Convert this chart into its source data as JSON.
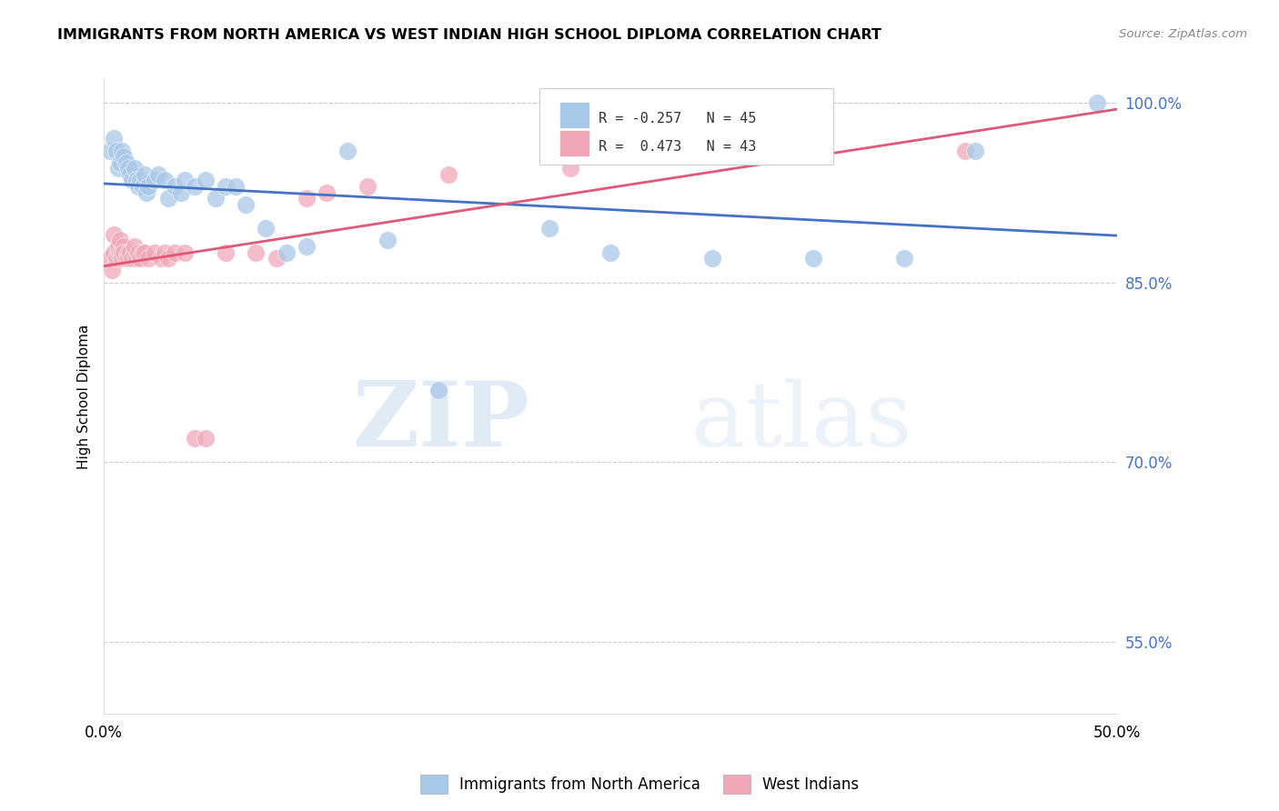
{
  "title": "IMMIGRANTS FROM NORTH AMERICA VS WEST INDIAN HIGH SCHOOL DIPLOMA CORRELATION CHART",
  "source": "Source: ZipAtlas.com",
  "ylabel": "High School Diploma",
  "xlim": [
    0.0,
    0.5
  ],
  "ylim": [
    0.49,
    1.02
  ],
  "x_ticks": [
    0.0,
    0.1,
    0.2,
    0.3,
    0.4,
    0.5
  ],
  "x_tick_labels": [
    "0.0%",
    "",
    "",
    "",
    "",
    "50.0%"
  ],
  "y_ticks_right": [
    1.0,
    0.85,
    0.7,
    0.55
  ],
  "y_tick_labels_right": [
    "100.0%",
    "85.0%",
    "70.0%",
    "55.0%"
  ],
  "legend_labels_line1": "R = -0.257   N = 45",
  "legend_labels_line2": "R =  0.473   N = 43",
  "legend_label_bottom": [
    "Immigrants from North America",
    "West Indians"
  ],
  "blue_color": "#A8C8E8",
  "pink_color": "#F0A8B8",
  "blue_line_color": "#4472C4",
  "pink_line_color": "#E05878",
  "watermark_zip": "ZIP",
  "watermark_atlas": "atlas",
  "blue_points_x": [
    0.003,
    0.005,
    0.006,
    0.007,
    0.008,
    0.009,
    0.01,
    0.011,
    0.012,
    0.013,
    0.014,
    0.015,
    0.016,
    0.017,
    0.018,
    0.019,
    0.02,
    0.021,
    0.022,
    0.025,
    0.027,
    0.03,
    0.032,
    0.035,
    0.038,
    0.04,
    0.045,
    0.05,
    0.055,
    0.06,
    0.065,
    0.07,
    0.08,
    0.09,
    0.1,
    0.12,
    0.14,
    0.165,
    0.22,
    0.25,
    0.3,
    0.35,
    0.395,
    0.43,
    0.49
  ],
  "blue_points_y": [
    0.96,
    0.97,
    0.96,
    0.945,
    0.95,
    0.96,
    0.955,
    0.95,
    0.945,
    0.94,
    0.935,
    0.945,
    0.935,
    0.93,
    0.935,
    0.93,
    0.94,
    0.925,
    0.93,
    0.935,
    0.94,
    0.935,
    0.92,
    0.93,
    0.925,
    0.935,
    0.93,
    0.935,
    0.92,
    0.93,
    0.93,
    0.915,
    0.895,
    0.875,
    0.88,
    0.96,
    0.885,
    0.76,
    0.895,
    0.875,
    0.87,
    0.87,
    0.87,
    0.96,
    1.0
  ],
  "pink_points_x": [
    0.003,
    0.004,
    0.005,
    0.005,
    0.006,
    0.007,
    0.007,
    0.008,
    0.008,
    0.009,
    0.009,
    0.01,
    0.01,
    0.011,
    0.012,
    0.012,
    0.013,
    0.014,
    0.015,
    0.015,
    0.016,
    0.017,
    0.018,
    0.019,
    0.02,
    0.022,
    0.025,
    0.028,
    0.03,
    0.032,
    0.035,
    0.04,
    0.045,
    0.05,
    0.06,
    0.075,
    0.085,
    0.1,
    0.11,
    0.13,
    0.17,
    0.23,
    0.425
  ],
  "pink_points_y": [
    0.87,
    0.86,
    0.89,
    0.875,
    0.87,
    0.875,
    0.88,
    0.875,
    0.885,
    0.875,
    0.87,
    0.88,
    0.875,
    0.87,
    0.875,
    0.87,
    0.875,
    0.87,
    0.875,
    0.88,
    0.87,
    0.875,
    0.87,
    0.875,
    0.875,
    0.87,
    0.875,
    0.87,
    0.875,
    0.87,
    0.875,
    0.875,
    0.72,
    0.72,
    0.875,
    0.875,
    0.87,
    0.92,
    0.925,
    0.93,
    0.94,
    0.945,
    0.96
  ]
}
